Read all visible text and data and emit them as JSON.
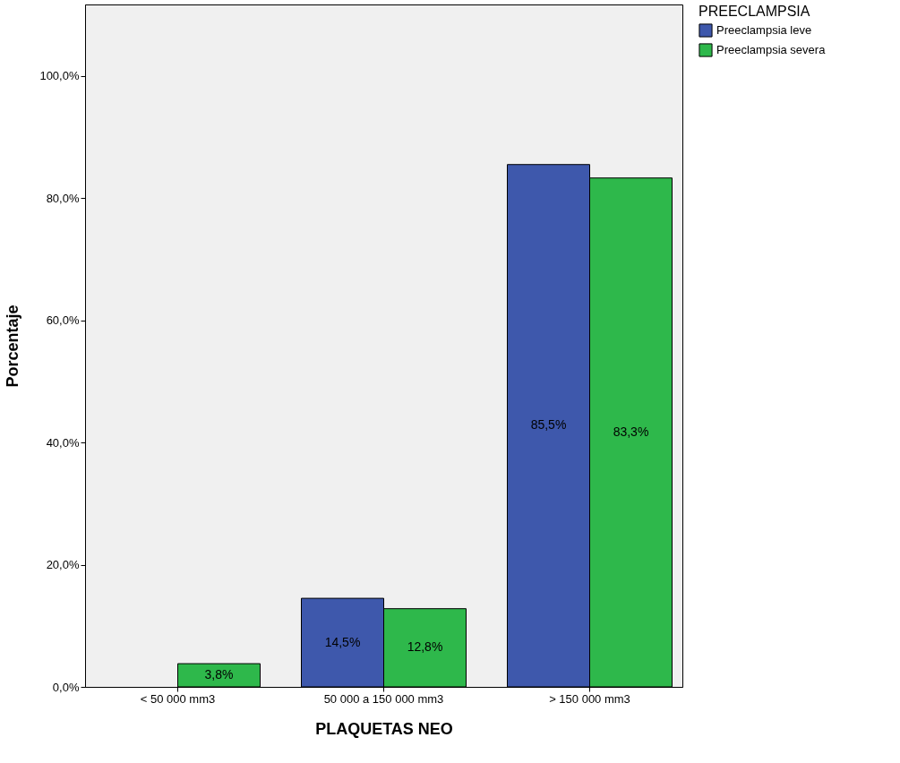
{
  "chart_data": {
    "type": "bar",
    "xlabel": "PLAQUETAS NEO",
    "ylabel": "Porcentaje",
    "legend_title": "PREECLAMPSIA",
    "categories": [
      "< 50 000 mm3",
      "50 000 a 150 000 mm3",
      "> 150 000 mm3"
    ],
    "series": [
      {
        "name": "Preeclampsia leve",
        "color": "#3e58ac",
        "values": [
          null,
          14.5,
          85.5
        ],
        "value_labels": [
          null,
          "14,5%",
          "85,5%"
        ]
      },
      {
        "name": "Preeclampsia severa",
        "color": "#2eb84b",
        "values": [
          3.8,
          12.8,
          83.3
        ],
        "value_labels": [
          "3,8%",
          "12,8%",
          "83,3%"
        ]
      }
    ],
    "ylim": [
      0,
      111.7
    ],
    "yticks": [
      {
        "value": 0,
        "label": "0,0%"
      },
      {
        "value": 20,
        "label": "20,0%"
      },
      {
        "value": 40,
        "label": "40,0%"
      },
      {
        "value": 60,
        "label": "60,0%"
      },
      {
        "value": 80,
        "label": "80,0%"
      },
      {
        "value": 100,
        "label": "100,0%"
      }
    ],
    "grid": false,
    "legend": "right"
  }
}
